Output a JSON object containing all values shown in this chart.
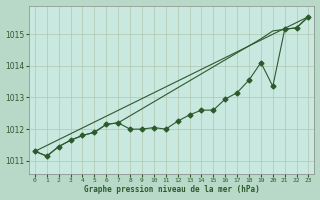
{
  "title": "Graphe pression niveau de la mer (hPa)",
  "background_color": "#b8d8c8",
  "plot_bg_color": "#c8e8e0",
  "line_color": "#2d5a2d",
  "grid_color": "#b0c8b0",
  "xlim": [
    -0.5,
    23.5
  ],
  "ylim": [
    1010.6,
    1015.9
  ],
  "yticks": [
    1011,
    1012,
    1013,
    1014,
    1015
  ],
  "xticks": [
    0,
    1,
    2,
    3,
    4,
    5,
    6,
    7,
    8,
    9,
    10,
    11,
    12,
    13,
    14,
    15,
    16,
    17,
    18,
    19,
    20,
    21,
    22,
    23
  ],
  "series1_x": [
    0,
    1,
    2,
    3,
    4,
    5,
    6,
    7,
    8,
    9,
    10,
    11,
    12,
    13,
    14,
    15,
    16,
    17,
    18,
    19,
    20,
    21,
    22,
    23
  ],
  "series1_y": [
    1011.3,
    1011.15,
    1011.45,
    1011.65,
    1011.8,
    1011.9,
    1012.15,
    1012.2,
    1012.0,
    1012.0,
    1012.05,
    1012.0,
    1012.25,
    1012.45,
    1012.6,
    1012.6,
    1012.95,
    1013.15,
    1013.55,
    1014.1,
    1013.35,
    1015.15,
    1015.2,
    1015.55
  ],
  "series2_x": [
    0,
    1,
    2,
    3,
    4,
    5,
    6,
    7,
    19,
    20,
    21,
    22,
    23
  ],
  "series2_y": [
    1011.3,
    1011.15,
    1011.45,
    1011.65,
    1011.8,
    1011.9,
    1012.15,
    1012.2,
    1014.85,
    1015.1,
    1015.15,
    1015.2,
    1015.55
  ],
  "series3_x": [
    0,
    23
  ],
  "series3_y": [
    1011.3,
    1015.55
  ]
}
